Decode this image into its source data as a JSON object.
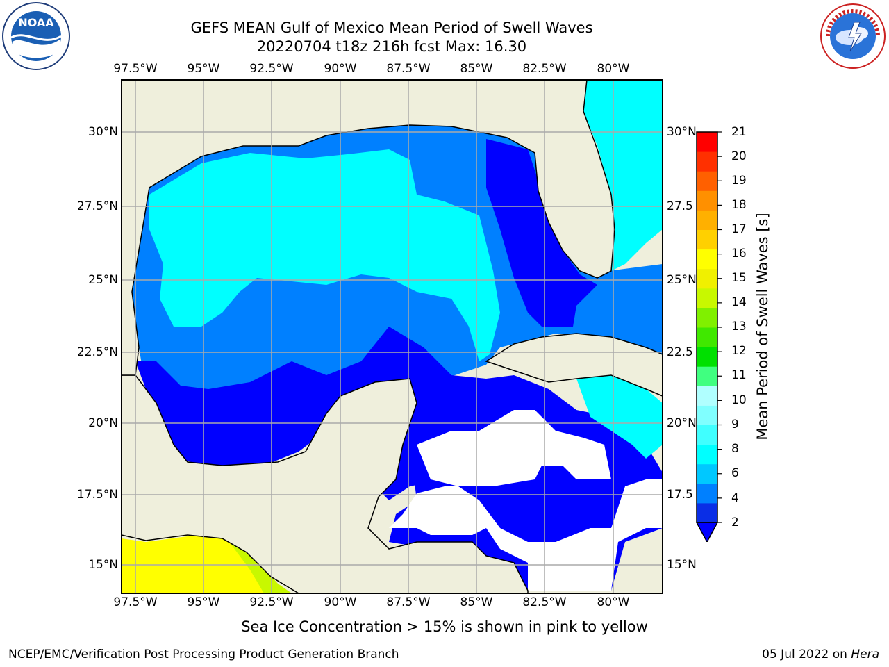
{
  "title": {
    "line1": "GEFS MEAN Gulf of Mexico Mean Period of Swell Waves",
    "line2": "20220704 t18z 216h fcst   Max: 16.30"
  },
  "axes": {
    "lon_ticks": [
      "97.5°W",
      "95°W",
      "92.5°W",
      "90°W",
      "87.5°W",
      "85°W",
      "82.5°W",
      "80°W"
    ],
    "lat_ticks_left": [
      "30°N",
      "27.5°N",
      "25°N",
      "22.5°N",
      "20°N",
      "17.5°N",
      "15°N"
    ],
    "lat_ticks_right": [
      "30°N",
      "27.5",
      "25°N",
      "22.5",
      "20°N",
      "17.5",
      "15°N"
    ]
  },
  "colorbar": {
    "title": "Mean Period of Swell Waves [s]",
    "labels": [
      "21",
      "20",
      "19",
      "18",
      "17",
      "16",
      "15",
      "14",
      "13",
      "12",
      "11",
      "10",
      "9",
      "8",
      "6",
      "4",
      "2"
    ],
    "colors_bottom_to_top": [
      "#0a2ee6",
      "#0080ff",
      "#00c8ff",
      "#00ffff",
      "#40ffff",
      "#80ffff",
      "#b0ffff",
      "#40ff80",
      "#00e000",
      "#40e800",
      "#80f000",
      "#c8f800",
      "#f0f000",
      "#ffff00",
      "#ffd000",
      "#ffb000",
      "#ff9000",
      "#ff6000",
      "#ff3000",
      "#ff0000"
    ],
    "extend_color": "#0000ff"
  },
  "map": {
    "land_color": "#efefdc",
    "ocean_colors": {
      "period_2_4": "#0080ff",
      "period_4_6": "#00ffff",
      "period_below_2": "#0000ff",
      "pacific_yellow": "#ffff00"
    }
  },
  "notes": {
    "ice": "Sea Ice Concentration > 15% is shown in pink to yellow"
  },
  "footer": {
    "left": "NCEP/EMC/Verification Post Processing Product Generation Branch",
    "date": "05 Jul 2022 on ",
    "host": "Hera"
  },
  "logos": {
    "noaa": "NOAA",
    "nws": "NATIONAL WEATHER SERVICE"
  }
}
